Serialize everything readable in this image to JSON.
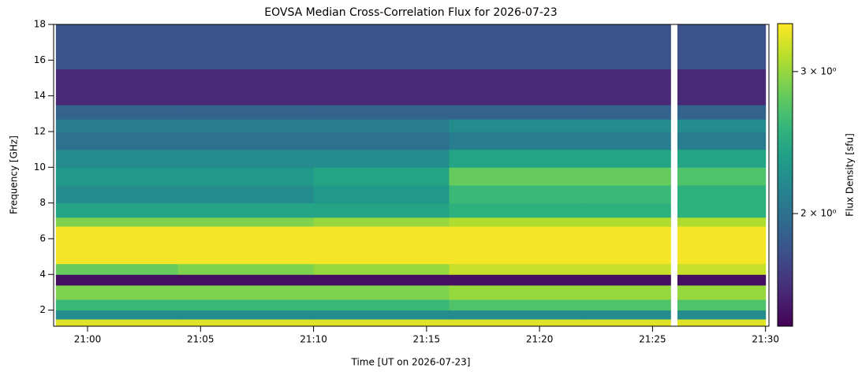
{
  "chart_data": {
    "type": "heatmap",
    "title": "EOVSA Median Cross-Correlation Flux for 2026-07-23",
    "xlabel": "Time [UT on 2026-07-23]",
    "ylabel": "Frequency [GHz]",
    "colorbar_label": "Flux Density [sfu]",
    "colormap": "viridis",
    "color_scale": "log",
    "x_bins": [
      1258.6,
      1264,
      1270,
      1276,
      1282,
      1285.8,
      1286.1,
      1290
    ],
    "y_bins": [
      1.1,
      1.5,
      2,
      2.6,
      3.4,
      4,
      4.6,
      6.7,
      7.2,
      8,
      9,
      10,
      11,
      12,
      12.7,
      13.5,
      15.5,
      18
    ],
    "values": [
      [
        3.3,
        3.3,
        3.3,
        3.3,
        3.3,
        null,
        3.3
      ],
      [
        2.2,
        2.2,
        2.2,
        2.2,
        2.2,
        null,
        2.2
      ],
      [
        2.6,
        2.6,
        2.6,
        2.7,
        2.7,
        null,
        2.7
      ],
      [
        2.9,
        2.9,
        2.9,
        3.0,
        3.0,
        null,
        3.0
      ],
      [
        1.5,
        1.5,
        1.5,
        1.5,
        1.5,
        null,
        1.5
      ],
      [
        2.8,
        2.9,
        3.0,
        3.2,
        3.2,
        null,
        3.2
      ],
      [
        3.4,
        3.4,
        3.4,
        3.4,
        3.4,
        null,
        3.4
      ],
      [
        2.9,
        2.9,
        3.0,
        3.1,
        3.1,
        null,
        3.1
      ],
      [
        2.4,
        2.4,
        2.4,
        2.5,
        2.5,
        null,
        2.5
      ],
      [
        2.2,
        2.2,
        2.3,
        2.6,
        2.6,
        null,
        2.5
      ],
      [
        2.3,
        2.3,
        2.4,
        2.8,
        2.8,
        null,
        2.7
      ],
      [
        2.2,
        2.2,
        2.2,
        2.4,
        2.4,
        null,
        2.4
      ],
      [
        2.0,
        2.0,
        2.0,
        2.1,
        2.1,
        null,
        2.1
      ],
      [
        2.1,
        2.1,
        2.1,
        2.2,
        2.2,
        null,
        2.2
      ],
      [
        1.9,
        1.9,
        1.9,
        1.9,
        1.9,
        null,
        1.9
      ],
      [
        1.6,
        1.6,
        1.6,
        1.6,
        1.6,
        null,
        1.6
      ],
      [
        1.8,
        1.8,
        1.8,
        1.8,
        1.8,
        null,
        1.8
      ]
    ],
    "xlim": [
      1258.5,
      1290.15
    ],
    "xticks": [
      {
        "value": 1260,
        "label": "21:00"
      },
      {
        "value": 1265,
        "label": "21:05"
      },
      {
        "value": 1270,
        "label": "21:10"
      },
      {
        "value": 1275,
        "label": "21:15"
      },
      {
        "value": 1280,
        "label": "21:20"
      },
      {
        "value": 1285,
        "label": "21:25"
      },
      {
        "value": 1290,
        "label": "21:30"
      }
    ],
    "ylim": [
      1.1,
      18
    ],
    "yticks": [
      2,
      4,
      6,
      8,
      10,
      12,
      14,
      16,
      18
    ],
    "clim": [
      1.45,
      3.44
    ],
    "cticks": [
      {
        "value": 2,
        "label": "2 × 10⁰"
      },
      {
        "value": 3,
        "label": "3 × 10⁰"
      }
    ]
  }
}
